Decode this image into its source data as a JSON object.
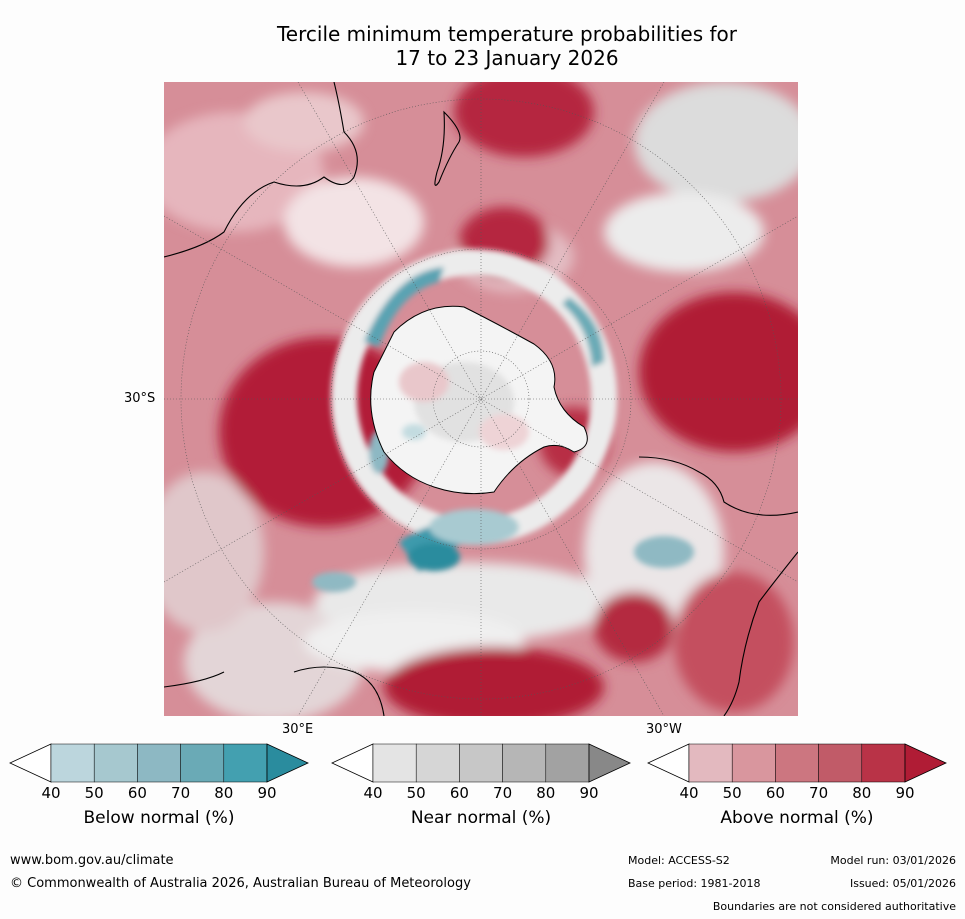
{
  "title": {
    "line1": "Tercile minimum temperature probabilities for",
    "line2": "17 to 23 January 2026"
  },
  "map": {
    "lat_label": "30°S",
    "lon_label_east": "30°E",
    "lon_label_west": "30°W"
  },
  "colorbars": [
    {
      "title": "Below normal (%)",
      "ticks": [
        "40",
        "50",
        "60",
        "70",
        "80",
        "90"
      ],
      "colors": [
        "#ffffff",
        "#bcd6dd",
        "#a6c8cf",
        "#8db8c3",
        "#6aaab6",
        "#43a0b0",
        "#2a8c9e"
      ]
    },
    {
      "title": "Near normal (%)",
      "ticks": [
        "40",
        "50",
        "60",
        "70",
        "80",
        "90"
      ],
      "colors": [
        "#ffffff",
        "#e4e4e4",
        "#d6d6d6",
        "#c7c7c7",
        "#b6b6b6",
        "#a2a2a2",
        "#888888"
      ]
    },
    {
      "title": "Above normal (%)",
      "ticks": [
        "40",
        "50",
        "60",
        "70",
        "80",
        "90"
      ],
      "colors": [
        "#ffffff",
        "#e3b9bf",
        "#d9969e",
        "#cc7680",
        "#c15b68",
        "#b93347",
        "#b01c35"
      ]
    }
  ],
  "footer": {
    "website": "www.bom.gov.au/climate",
    "copyright": "© Commonwealth of Australia 2026, Australian Bureau of Meteorology",
    "model": "Model: ACCESS-S2",
    "base_period": "Base period: 1981-2018",
    "model_run": "Model run: 03/01/2026",
    "issued": "Issued: 05/01/2026",
    "disclaimer": "Boundaries are not considered authoritative"
  }
}
